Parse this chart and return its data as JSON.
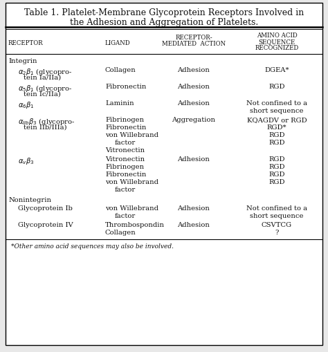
{
  "title_line1": "Table 1. Platelet-Membrane Glycoprotein Receptors Involved in",
  "title_line2": "the Adhesion and Aggregation of Platelets.",
  "footnote": "*Other amino acid sequences may also be involved.",
  "bg_color": "#e8e8e8",
  "table_bg": "#ffffff",
  "text_color": "#111111",
  "font_family": "serif",
  "title_fontsize": 9.0,
  "header_fontsize": 6.2,
  "body_fontsize": 7.2,
  "footnote_fontsize": 6.5
}
